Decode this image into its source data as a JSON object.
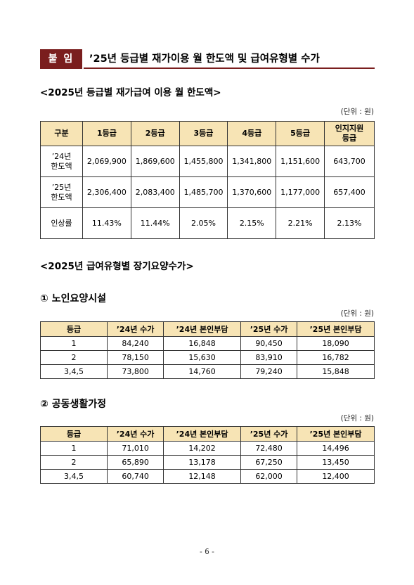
{
  "header": {
    "badge": "붙 임",
    "title": "’25년 등급별 재가이용 월 한도액 및 급여유형별 수가"
  },
  "section1": {
    "title": "<2025년 등급별 재가급여 이용 월 한도액>",
    "unit": "(단위 : 원)",
    "columns": [
      "구분",
      "1등급",
      "2등급",
      "3등급",
      "4등급",
      "5등급",
      "인지지원\n등급"
    ],
    "rows": [
      {
        "label": "’24년\n한도액",
        "values": [
          "2,069,900",
          "1,869,600",
          "1,455,800",
          "1,341,800",
          "1,151,600",
          "643,700"
        ]
      },
      {
        "label": "’25년\n한도액",
        "values": [
          "2,306,400",
          "2,083,400",
          "1,485,700",
          "1,370,600",
          "1,177,000",
          "657,400"
        ]
      },
      {
        "label": "인상률",
        "values": [
          "11.43%",
          "11.44%",
          "2.05%",
          "2.15%",
          "2.21%",
          "2.13%"
        ]
      }
    ]
  },
  "section2": {
    "title": "<2025년 급여유형별 장기요양수가>"
  },
  "facility": {
    "title": "① 노인요양시설",
    "unit": "(단위 : 원)",
    "columns": [
      "등급",
      "’24년 수가",
      "’24년 본인부담",
      "’25년 수가",
      "’25년 본인부담"
    ],
    "rows": [
      [
        "1",
        "84,240",
        "16,848",
        "90,450",
        "18,090"
      ],
      [
        "2",
        "78,150",
        "15,630",
        "83,910",
        "16,782"
      ],
      [
        "3,4,5",
        "73,800",
        "14,760",
        "79,240",
        "15,848"
      ]
    ]
  },
  "group_home": {
    "title": "② 공동생활가정",
    "unit": "(단위 : 원)",
    "columns": [
      "등급",
      "’24년 수가",
      "’24년 본인부담",
      "’25년 수가",
      "’25년 본인부담"
    ],
    "rows": [
      [
        "1",
        "71,010",
        "14,202",
        "72,480",
        "14,496"
      ],
      [
        "2",
        "65,890",
        "13,178",
        "67,250",
        "13,450"
      ],
      [
        "3,4,5",
        "60,740",
        "12,148",
        "62,000",
        "12,400"
      ]
    ]
  },
  "footer": {
    "page": "- 6 -"
  }
}
